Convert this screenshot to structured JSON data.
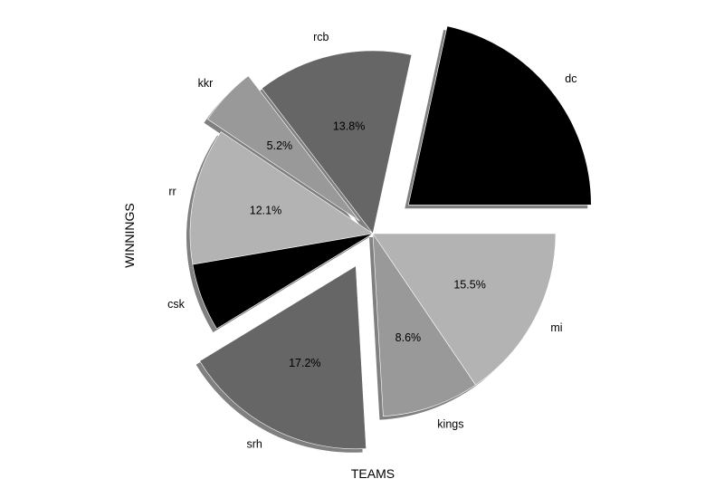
{
  "chart_data": {
    "type": "pie",
    "xlabel": "TEAMS",
    "ylabel": "WINNINGS",
    "start_angle_deg": 0,
    "direction": "counterclockwise",
    "shadow": true,
    "slices": [
      {
        "label": "dc",
        "value": 21.6,
        "pct_label": "",
        "color": "#000000",
        "explode": 0.25
      },
      {
        "label": "rcb",
        "value": 13.8,
        "pct_label": "13.8%",
        "color": "#666666",
        "explode": 0.0
      },
      {
        "label": "kkr",
        "value": 5.2,
        "pct_label": "5.2%",
        "color": "#999999",
        "explode": 0.1
      },
      {
        "label": "rr",
        "value": 12.1,
        "pct_label": "12.1%",
        "color": "#b3b3b3",
        "explode": 0.0
      },
      {
        "label": "csk",
        "value": 6.0,
        "pct_label": "",
        "color": "#000000",
        "explode": 0.0
      },
      {
        "label": "srh",
        "value": 17.2,
        "pct_label": "17.2%",
        "color": "#666666",
        "explode": 0.2
      },
      {
        "label": "kings",
        "value": 8.6,
        "pct_label": "8.6%",
        "color": "#999999",
        "explode": 0.0
      },
      {
        "label": "mi",
        "value": 15.5,
        "pct_label": "15.5%",
        "color": "#b3b3b3",
        "explode": 0.0
      }
    ]
  }
}
